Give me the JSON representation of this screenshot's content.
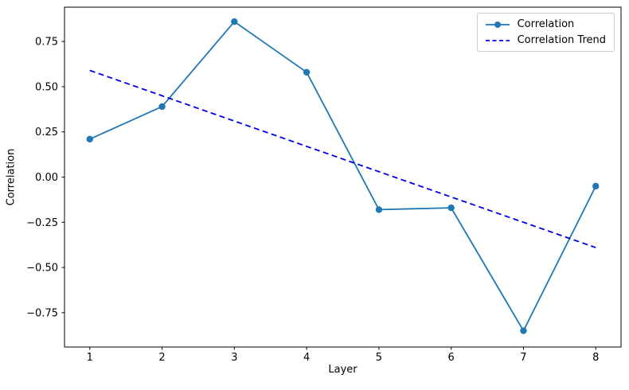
{
  "figure": {
    "background": "#ffffff",
    "frame_color": "#000000",
    "tick_label_color": "#000000"
  },
  "chart_data": {
    "type": "line",
    "title": "",
    "xlabel": "Layer",
    "ylabel": "Correlation",
    "x": [
      1,
      2,
      3,
      4,
      5,
      6,
      7,
      8
    ],
    "series": [
      {
        "name": "Correlation",
        "x": [
          1,
          2,
          3,
          4,
          5,
          6,
          7,
          8
        ],
        "values": [
          0.21,
          0.39,
          0.86,
          0.58,
          -0.18,
          -0.17,
          -0.85,
          -0.05
        ],
        "color": "#1f77b4",
        "style": "solid",
        "marker": "circle"
      },
      {
        "name": "Correlation Trend",
        "x": [
          1,
          8
        ],
        "values": [
          0.59,
          -0.39
        ],
        "color": "#0000ee",
        "style": "dashed",
        "marker": "none"
      }
    ],
    "x_ticks": [
      1,
      2,
      3,
      4,
      5,
      6,
      7,
      8
    ],
    "y_ticks": [
      -0.75,
      -0.5,
      -0.25,
      0,
      0.25,
      0.5,
      0.75
    ],
    "xlim": [
      0.65,
      8.35
    ],
    "ylim": [
      -0.94,
      0.94
    ],
    "grid": false,
    "legend_position": "upper right"
  }
}
